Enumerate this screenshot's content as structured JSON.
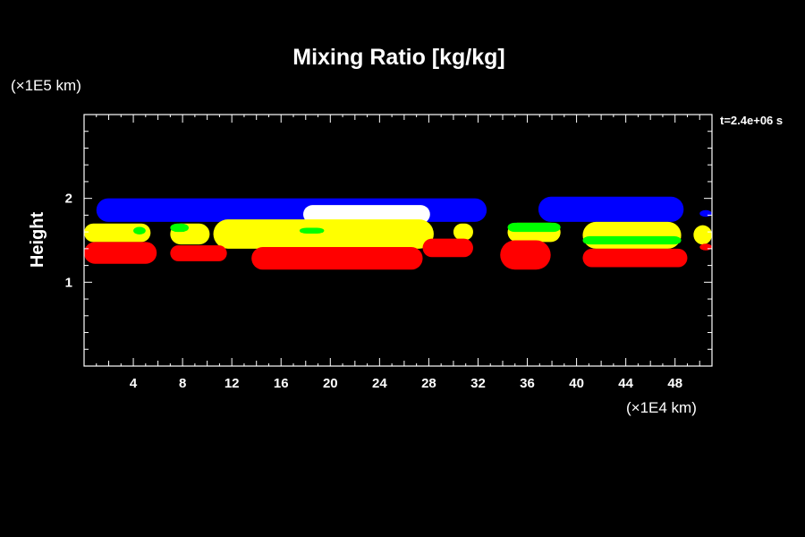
{
  "colors": {
    "background": "#000000",
    "frame": "#ffffff",
    "text": "#ffffff",
    "blue": "#0000ff",
    "white": "#ffffff",
    "yellow": "#ffff00",
    "green": "#00ff00",
    "red": "#ff0000"
  },
  "chart_data": {
    "type": "heatmap",
    "title": "Mixing Ratio [kg/kg]",
    "xlabel": "",
    "ylabel": "Height",
    "x_unit": "(×1E4 km)",
    "y_unit": "(×1E5 km)",
    "time_label": "t=2.4e+06 s",
    "xlim": [
      0,
      51
    ],
    "ylim": [
      0,
      3
    ],
    "x_major_ticks": [
      4,
      8,
      12,
      16,
      20,
      24,
      28,
      32,
      36,
      40,
      44,
      48
    ],
    "x_tick_labels": [
      "4",
      "8",
      "12",
      "16",
      "20",
      "24",
      "28",
      "32",
      "36",
      "40",
      "44",
      "48"
    ],
    "y_major_ticks": [
      1,
      2
    ],
    "y_tick_labels": [
      "1",
      "2"
    ],
    "grid": false,
    "layers": [
      {
        "color": "blue",
        "regions": [
          {
            "x0": 1.0,
            "x1": 32.7,
            "y0": 1.72,
            "y1": 2.0
          },
          {
            "x0": 36.9,
            "x1": 48.7,
            "y0": 1.72,
            "y1": 2.02
          },
          {
            "x0": 50.0,
            "x1": 51.0,
            "y0": 1.78,
            "y1": 1.86
          }
        ]
      },
      {
        "color": "white",
        "regions": [
          {
            "x0": 17.8,
            "x1": 28.1,
            "y0": 1.7,
            "y1": 1.92
          }
        ]
      },
      {
        "color": "yellow",
        "regions": [
          {
            "x0": 0.0,
            "x1": 5.4,
            "y0": 1.48,
            "y1": 1.7
          },
          {
            "x0": 7.0,
            "x1": 10.2,
            "y0": 1.45,
            "y1": 1.7
          },
          {
            "x0": 10.5,
            "x1": 28.4,
            "y0": 1.4,
            "y1": 1.75
          },
          {
            "x0": 30.0,
            "x1": 31.6,
            "y0": 1.5,
            "y1": 1.7
          },
          {
            "x0": 34.4,
            "x1": 38.7,
            "y0": 1.48,
            "y1": 1.71
          },
          {
            "x0": 40.5,
            "x1": 48.5,
            "y0": 1.4,
            "y1": 1.72
          },
          {
            "x0": 49.5,
            "x1": 51.0,
            "y0": 1.45,
            "y1": 1.68
          }
        ]
      },
      {
        "color": "green",
        "regions": [
          {
            "x0": 4.0,
            "x1": 5.0,
            "y0": 1.57,
            "y1": 1.66
          },
          {
            "x0": 7.0,
            "x1": 8.5,
            "y0": 1.6,
            "y1": 1.7
          },
          {
            "x0": 17.5,
            "x1": 19.5,
            "y0": 1.58,
            "y1": 1.65
          },
          {
            "x0": 34.4,
            "x1": 38.7,
            "y0": 1.6,
            "y1": 1.71
          },
          {
            "x0": 40.5,
            "x1": 48.5,
            "y0": 1.45,
            "y1": 1.55
          }
        ]
      },
      {
        "color": "red",
        "regions": [
          {
            "x0": 0.0,
            "x1": 5.9,
            "y0": 1.22,
            "y1": 1.48
          },
          {
            "x0": 7.0,
            "x1": 11.6,
            "y0": 1.25,
            "y1": 1.44
          },
          {
            "x0": 13.6,
            "x1": 27.5,
            "y0": 1.15,
            "y1": 1.42
          },
          {
            "x0": 27.5,
            "x1": 31.6,
            "y0": 1.3,
            "y1": 1.52
          },
          {
            "x0": 33.8,
            "x1": 37.9,
            "y0": 1.15,
            "y1": 1.5
          },
          {
            "x0": 40.5,
            "x1": 49.0,
            "y0": 1.18,
            "y1": 1.4
          },
          {
            "x0": 50.0,
            "x1": 51.0,
            "y0": 1.38,
            "y1": 1.46
          }
        ]
      }
    ]
  }
}
